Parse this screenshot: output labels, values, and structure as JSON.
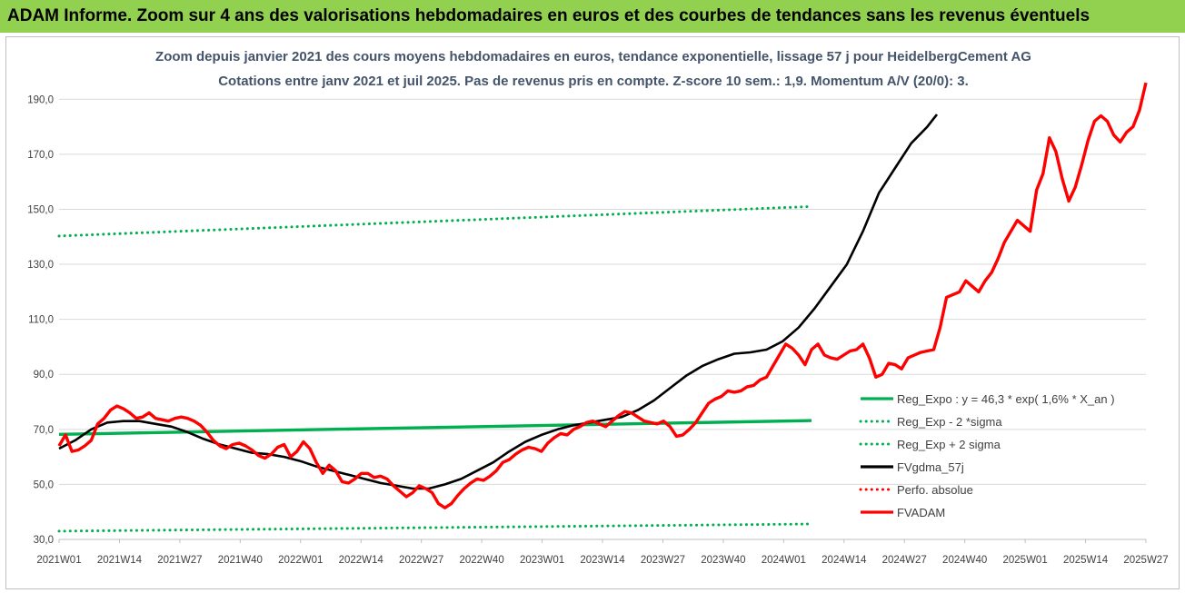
{
  "header": {
    "title": "ADAM Informe. Zoom sur 4 ans des valorisations hebdomadaires en euros et des courbes de tendances sans les revenus éventuels"
  },
  "colors": {
    "banner": "#92d050",
    "reg_green": "#00b050",
    "fvadam_red": "#ff0000",
    "gdma_black": "#000000",
    "perfo_red": "#ff0000"
  },
  "chart_data": {
    "type": "line",
    "title": "Zoom depuis janvier 2021 des cours moyens hebdomadaires en euros, tendance exponentielle, lissage 57 j pour HeidelbergCement AG",
    "subtitle": "Cotations entre janv 2021 et juil 2025. Pas de revenus pris en compte. Z-score 10 sem.: 1,9. Momentum A/V (20/0): 3.",
    "ylim": [
      30,
      200
    ],
    "yticks": [
      "190,0",
      "170,0",
      "150,0",
      "130,0",
      "110,0",
      "90,0",
      "70,0",
      "50,0",
      "30,0"
    ],
    "ytick_values": [
      190,
      170,
      150,
      130,
      110,
      90,
      70,
      50,
      30
    ],
    "xticks": [
      "2021W01",
      "2021W14",
      "2021W27",
      "2021W40",
      "2022W01",
      "2022W14",
      "2022W27",
      "2022W40",
      "2023W01",
      "2023W14",
      "2023W27",
      "2023W40",
      "2024W01",
      "2024W14",
      "2024W27",
      "2024W40",
      "2025W01",
      "2025W14",
      "2025W27"
    ],
    "grid": true,
    "legend_position": "right",
    "series": [
      {
        "name": "Reg_Expo : y = 46,3 * exp( 1,6% * X_an )",
        "style": "solid",
        "color": "#00b050",
        "points": [
          [
            0,
            68.2
          ],
          [
            234,
            73.2
          ]
        ]
      },
      {
        "name": "Reg_Exp - 2 *sigma",
        "style": "dotted",
        "color": "#00b050",
        "points": [
          [
            0,
            33.0
          ],
          [
            234,
            35.6
          ]
        ]
      },
      {
        "name": "Reg_Exp + 2 sigma",
        "style": "dotted",
        "color": "#00b050",
        "points": [
          [
            0,
            140.3
          ],
          [
            234,
            151.0
          ]
        ]
      },
      {
        "name": "FVgdma_57j",
        "style": "solid",
        "color": "#000000",
        "points": [
          [
            0,
            63
          ],
          [
            5,
            66
          ],
          [
            10,
            70
          ],
          [
            15,
            72.5
          ],
          [
            20,
            73
          ],
          [
            25,
            73
          ],
          [
            30,
            72
          ],
          [
            35,
            71
          ],
          [
            40,
            69
          ],
          [
            45,
            66.5
          ],
          [
            50,
            64.5
          ],
          [
            55,
            63
          ],
          [
            60,
            61.5
          ],
          [
            65,
            61
          ],
          [
            70,
            60
          ],
          [
            75,
            58.5
          ],
          [
            80,
            56.5
          ],
          [
            85,
            55
          ],
          [
            90,
            53.5
          ],
          [
            95,
            52
          ],
          [
            100,
            50.5
          ],
          [
            105,
            49.5
          ],
          [
            110,
            48.5
          ],
          [
            115,
            48.5
          ],
          [
            120,
            50
          ],
          [
            125,
            52
          ],
          [
            130,
            55
          ],
          [
            135,
            58
          ],
          [
            140,
            62
          ],
          [
            145,
            65.5
          ],
          [
            150,
            68
          ],
          [
            155,
            70
          ],
          [
            160,
            71.5
          ],
          [
            165,
            72.5
          ],
          [
            170,
            73.5
          ],
          [
            175,
            74.5
          ],
          [
            180,
            77
          ],
          [
            185,
            80.5
          ],
          [
            190,
            85
          ],
          [
            195,
            89.5
          ],
          [
            200,
            93
          ],
          [
            205,
            95.5
          ],
          [
            210,
            97.5
          ],
          [
            215,
            98
          ],
          [
            220,
            99
          ],
          [
            225,
            102
          ],
          [
            230,
            107
          ],
          [
            235,
            114
          ],
          [
            240,
            122
          ],
          [
            245,
            130
          ],
          [
            250,
            142
          ],
          [
            255,
            156
          ],
          [
            260,
            165
          ],
          [
            265,
            174
          ],
          [
            270,
            180
          ],
          [
            273,
            184.5
          ]
        ]
      },
      {
        "name": "Perfo. absolue",
        "style": "dotted",
        "color": "#ff0000",
        "points": []
      },
      {
        "name": "FVADAM",
        "style": "solid",
        "color": "#ff0000",
        "points": [
          [
            0,
            64
          ],
          [
            2,
            68
          ],
          [
            4,
            62
          ],
          [
            6,
            62.5
          ],
          [
            8,
            64
          ],
          [
            10,
            66
          ],
          [
            12,
            72
          ],
          [
            14,
            74
          ],
          [
            16,
            77
          ],
          [
            18,
            78.5
          ],
          [
            20,
            77.5
          ],
          [
            22,
            76
          ],
          [
            24,
            74
          ],
          [
            26,
            74.5
          ],
          [
            28,
            76
          ],
          [
            30,
            74
          ],
          [
            32,
            73.5
          ],
          [
            34,
            73
          ],
          [
            36,
            74
          ],
          [
            38,
            74.5
          ],
          [
            40,
            74
          ],
          [
            42,
            73
          ],
          [
            44,
            71.5
          ],
          [
            46,
            69
          ],
          [
            48,
            66
          ],
          [
            50,
            64
          ],
          [
            52,
            63
          ],
          [
            54,
            64.5
          ],
          [
            56,
            65
          ],
          [
            58,
            64
          ],
          [
            60,
            62.5
          ],
          [
            62,
            60.5
          ],
          [
            64,
            59.5
          ],
          [
            66,
            61
          ],
          [
            68,
            63.5
          ],
          [
            70,
            64.5
          ],
          [
            72,
            60
          ],
          [
            74,
            62
          ],
          [
            76,
            65.5
          ],
          [
            78,
            63
          ],
          [
            80,
            58
          ],
          [
            82,
            54
          ],
          [
            84,
            57
          ],
          [
            86,
            55
          ],
          [
            88,
            51
          ],
          [
            90,
            50.5
          ],
          [
            92,
            52
          ],
          [
            94,
            54
          ],
          [
            96,
            54
          ],
          [
            98,
            52.5
          ],
          [
            100,
            53
          ],
          [
            102,
            52
          ],
          [
            104,
            49.5
          ],
          [
            106,
            47.5
          ],
          [
            108,
            45.5
          ],
          [
            110,
            47
          ],
          [
            112,
            49.5
          ],
          [
            114,
            48.5
          ],
          [
            116,
            47
          ],
          [
            118,
            43
          ],
          [
            120,
            41.5
          ],
          [
            122,
            43
          ],
          [
            124,
            46
          ],
          [
            126,
            48.5
          ],
          [
            128,
            50.5
          ],
          [
            130,
            52
          ],
          [
            132,
            51.5
          ],
          [
            134,
            53
          ],
          [
            136,
            55
          ],
          [
            138,
            58
          ],
          [
            140,
            59
          ],
          [
            142,
            61
          ],
          [
            144,
            62.5
          ],
          [
            146,
            63.5
          ],
          [
            148,
            63
          ],
          [
            150,
            62
          ],
          [
            152,
            65
          ],
          [
            154,
            67
          ],
          [
            156,
            68.5
          ],
          [
            158,
            68
          ],
          [
            160,
            70
          ],
          [
            162,
            71
          ],
          [
            164,
            72.5
          ],
          [
            166,
            73
          ],
          [
            168,
            72
          ],
          [
            170,
            71
          ],
          [
            172,
            73
          ],
          [
            174,
            75
          ],
          [
            176,
            76.5
          ],
          [
            178,
            76
          ],
          [
            180,
            74.5
          ],
          [
            182,
            73
          ],
          [
            184,
            72.5
          ],
          [
            186,
            72
          ],
          [
            188,
            73
          ],
          [
            190,
            71
          ],
          [
            192,
            67.5
          ],
          [
            194,
            68
          ],
          [
            196,
            70
          ],
          [
            198,
            72.5
          ],
          [
            200,
            76
          ],
          [
            202,
            79.5
          ],
          [
            204,
            81
          ],
          [
            206,
            82
          ],
          [
            208,
            84
          ],
          [
            210,
            83.5
          ],
          [
            212,
            84
          ],
          [
            214,
            85.5
          ],
          [
            216,
            86
          ],
          [
            218,
            88
          ],
          [
            220,
            89
          ],
          [
            222,
            93
          ],
          [
            224,
            97
          ],
          [
            226,
            101
          ],
          [
            228,
            99.5
          ],
          [
            230,
            97
          ],
          [
            232,
            93.5
          ],
          [
            234,
            99
          ],
          [
            236,
            101
          ],
          [
            238,
            97
          ],
          [
            240,
            96
          ],
          [
            242,
            95.5
          ],
          [
            244,
            97
          ],
          [
            246,
            98.5
          ],
          [
            248,
            99
          ],
          [
            250,
            101
          ],
          [
            252,
            96
          ],
          [
            254,
            89
          ],
          [
            256,
            90
          ],
          [
            258,
            94
          ],
          [
            260,
            93.5
          ],
          [
            262,
            92
          ],
          [
            264,
            96
          ],
          [
            266,
            97
          ],
          [
            268,
            98
          ],
          [
            270,
            98.5
          ],
          [
            272,
            99
          ],
          [
            274,
            107
          ],
          [
            276,
            118
          ],
          [
            278,
            119
          ],
          [
            280,
            120
          ],
          [
            282,
            124
          ],
          [
            284,
            122
          ],
          [
            286,
            120
          ],
          [
            288,
            124
          ],
          [
            290,
            127
          ],
          [
            292,
            132
          ],
          [
            294,
            138
          ],
          [
            296,
            142
          ],
          [
            298,
            146
          ],
          [
            300,
            144
          ],
          [
            302,
            142
          ],
          [
            304,
            157
          ],
          [
            306,
            163
          ],
          [
            308,
            176
          ],
          [
            310,
            171
          ],
          [
            312,
            161
          ],
          [
            314,
            153
          ],
          [
            316,
            158
          ],
          [
            318,
            166
          ],
          [
            320,
            175
          ],
          [
            322,
            182
          ],
          [
            324,
            184
          ],
          [
            326,
            182
          ],
          [
            328,
            177
          ],
          [
            330,
            174.5
          ],
          [
            332,
            178
          ],
          [
            334,
            180
          ],
          [
            336,
            186
          ],
          [
            338,
            196
          ]
        ]
      }
    ]
  }
}
